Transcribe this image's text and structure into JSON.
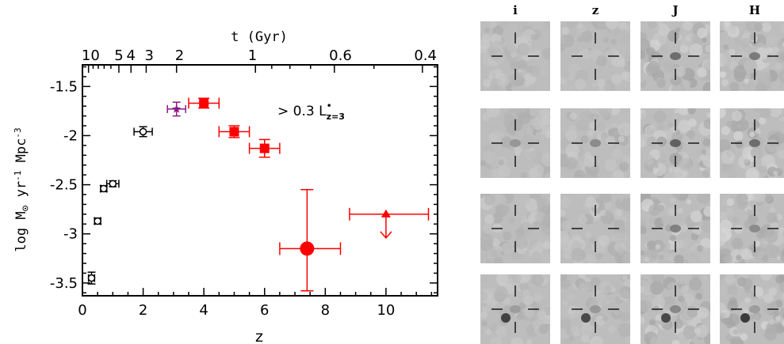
{
  "chart_data": {
    "type": "scatter",
    "xlabel": "z",
    "ylabel": "log M⊙ yr⁻¹ Mpc⁻³",
    "top_axis_label": "t (Gyr)",
    "top_tick_labels": [
      "10",
      "5",
      "4",
      "3",
      "2",
      "1",
      "0.6",
      "0.4"
    ],
    "x_tick_labels": [
      "0",
      "2",
      "4",
      "6",
      "8",
      "10"
    ],
    "y_tick_labels": [
      "-1.5",
      "-2",
      "-2.5",
      "-3",
      "-3.5"
    ],
    "xlim": [
      0,
      11.7
    ],
    "ylim": [
      -3.63,
      -1.28
    ],
    "annotation": "> 0.3 L*z=3",
    "grid": false,
    "series": [
      {
        "color": "#000000",
        "marker": "open-circle",
        "points": [
          {
            "x": 0.3,
            "y": -3.45,
            "xerr": [
              0.1,
              0.1
            ],
            "yerr": [
              0.06,
              0.06
            ]
          },
          {
            "x": 0.5,
            "y": -2.87,
            "xerr": [
              0.1,
              0.1
            ],
            "yerr": [
              0.03,
              0.03
            ]
          },
          {
            "x": 0.7,
            "y": -2.54,
            "xerr": [
              0.1,
              0.1
            ],
            "yerr": [
              0.03,
              0.03
            ]
          },
          {
            "x": 1.0,
            "y": -2.49,
            "xerr": [
              0.2,
              0.2
            ],
            "yerr": [
              0.03,
              0.03
            ]
          },
          {
            "x": 2.0,
            "y": -1.96,
            "xerr": [
              0.3,
              0.3
            ],
            "yerr": [
              0.05,
              0.05
            ]
          }
        ]
      },
      {
        "color": "#8b1a89",
        "marker": "star",
        "points": [
          {
            "x": 3.1,
            "y": -1.73,
            "xerr": [
              0.3,
              0.3
            ],
            "yerr": [
              0.07,
              0.07
            ]
          }
        ]
      },
      {
        "color": "#ff0000",
        "marker": "square",
        "points": [
          {
            "x": 4.0,
            "y": -1.67,
            "xerr": [
              0.5,
              0.5
            ],
            "yerr": [
              0.05,
              0.05
            ]
          },
          {
            "x": 5.0,
            "y": -1.96,
            "xerr": [
              0.5,
              0.5
            ],
            "yerr": [
              0.06,
              0.06
            ]
          },
          {
            "x": 6.0,
            "y": -2.13,
            "xerr": [
              0.5,
              0.5
            ],
            "yerr": [
              0.09,
              0.09
            ]
          }
        ]
      },
      {
        "color": "#ff0000",
        "marker": "big-circle",
        "points": [
          {
            "x": 7.4,
            "y": -3.15,
            "xerr": [
              0.9,
              1.1
            ],
            "yerr": [
              0.43,
              0.6
            ]
          }
        ]
      },
      {
        "color": "#ff0000",
        "marker": "upper-limit-triangle",
        "points": [
          {
            "x": 10.0,
            "y": -2.8,
            "xerr": [
              1.2,
              1.4
            ],
            "yerr": [
              0,
              0
            ]
          }
        ]
      }
    ]
  },
  "stamps": {
    "columns": [
      "i",
      "z",
      "J",
      "H"
    ]
  }
}
